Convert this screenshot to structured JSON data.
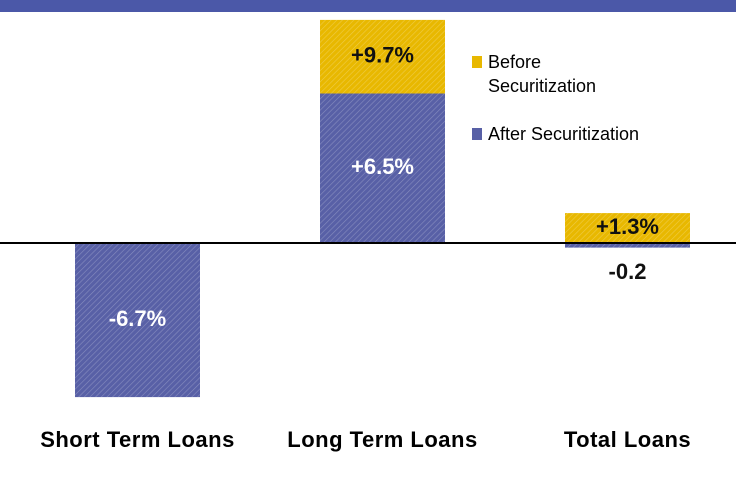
{
  "chart_data": {
    "type": "bar",
    "categories": [
      "Short Term Loans",
      "Long Term Loans",
      "Total Loans"
    ],
    "series": [
      {
        "name": "Before Securitization",
        "color": "#e8b800",
        "values": [
          null,
          9.7,
          1.3
        ],
        "value_labels": [
          null,
          "+9.7%",
          "+1.3%"
        ]
      },
      {
        "name": "After Securitization",
        "color": "#5860a6",
        "values": [
          -6.7,
          6.5,
          -0.2
        ],
        "value_labels": [
          "-6.7%",
          "+6.5%",
          "-0.2"
        ]
      }
    ],
    "ylim": [
      -8,
      10
    ]
  }
}
